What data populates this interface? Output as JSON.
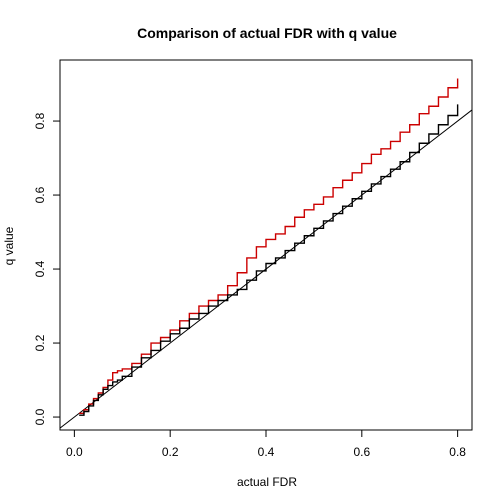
{
  "chart_data": {
    "type": "line",
    "title": "Comparison of actual FDR with q value",
    "xlabel": "actual FDR",
    "ylabel": "q value",
    "xlim": [
      -0.03,
      0.83
    ],
    "ylim": [
      -0.035,
      0.965
    ],
    "xticks": [
      0.0,
      0.2,
      0.4,
      0.6,
      0.8
    ],
    "xtick_labels": [
      "0.0",
      "0.2",
      "0.4",
      "0.6",
      "0.8"
    ],
    "yticks": [
      0.0,
      0.2,
      0.4,
      0.6,
      0.8
    ],
    "ytick_labels": [
      "0.0",
      "0.2",
      "0.4",
      "0.6",
      "0.8"
    ],
    "grid": false,
    "reference_line": {
      "intercept": 0,
      "slope": 1,
      "color": "#000000"
    },
    "series": [
      {
        "color": "#cc0000",
        "x": [
          0.01,
          0.02,
          0.03,
          0.04,
          0.05,
          0.06,
          0.07,
          0.08,
          0.09,
          0.1,
          0.12,
          0.14,
          0.16,
          0.18,
          0.2,
          0.22,
          0.24,
          0.26,
          0.28,
          0.3,
          0.32,
          0.34,
          0.36,
          0.38,
          0.4,
          0.42,
          0.44,
          0.46,
          0.48,
          0.5,
          0.52,
          0.54,
          0.56,
          0.58,
          0.6,
          0.62,
          0.64,
          0.66,
          0.68,
          0.7,
          0.72,
          0.74,
          0.76,
          0.78,
          0.8
        ],
        "y": [
          0.01,
          0.02,
          0.035,
          0.05,
          0.065,
          0.08,
          0.1,
          0.12,
          0.125,
          0.13,
          0.145,
          0.17,
          0.2,
          0.215,
          0.235,
          0.26,
          0.28,
          0.3,
          0.315,
          0.33,
          0.355,
          0.39,
          0.43,
          0.46,
          0.48,
          0.495,
          0.515,
          0.54,
          0.56,
          0.575,
          0.595,
          0.62,
          0.64,
          0.66,
          0.685,
          0.71,
          0.725,
          0.745,
          0.77,
          0.79,
          0.82,
          0.84,
          0.865,
          0.89,
          0.915
        ]
      },
      {
        "color": "#000000",
        "x": [
          0.01,
          0.02,
          0.03,
          0.04,
          0.05,
          0.06,
          0.07,
          0.08,
          0.09,
          0.1,
          0.12,
          0.14,
          0.16,
          0.18,
          0.2,
          0.22,
          0.24,
          0.26,
          0.28,
          0.3,
          0.32,
          0.34,
          0.36,
          0.38,
          0.4,
          0.42,
          0.44,
          0.46,
          0.48,
          0.5,
          0.52,
          0.54,
          0.56,
          0.58,
          0.6,
          0.62,
          0.64,
          0.66,
          0.68,
          0.7,
          0.72,
          0.74,
          0.76,
          0.78,
          0.8
        ],
        "y": [
          0.005,
          0.015,
          0.03,
          0.045,
          0.06,
          0.075,
          0.085,
          0.095,
          0.1,
          0.11,
          0.135,
          0.16,
          0.18,
          0.205,
          0.225,
          0.24,
          0.265,
          0.28,
          0.3,
          0.315,
          0.33,
          0.345,
          0.37,
          0.395,
          0.415,
          0.43,
          0.45,
          0.47,
          0.49,
          0.51,
          0.53,
          0.55,
          0.57,
          0.59,
          0.61,
          0.63,
          0.65,
          0.67,
          0.69,
          0.715,
          0.74,
          0.765,
          0.79,
          0.815,
          0.845
        ]
      }
    ]
  }
}
